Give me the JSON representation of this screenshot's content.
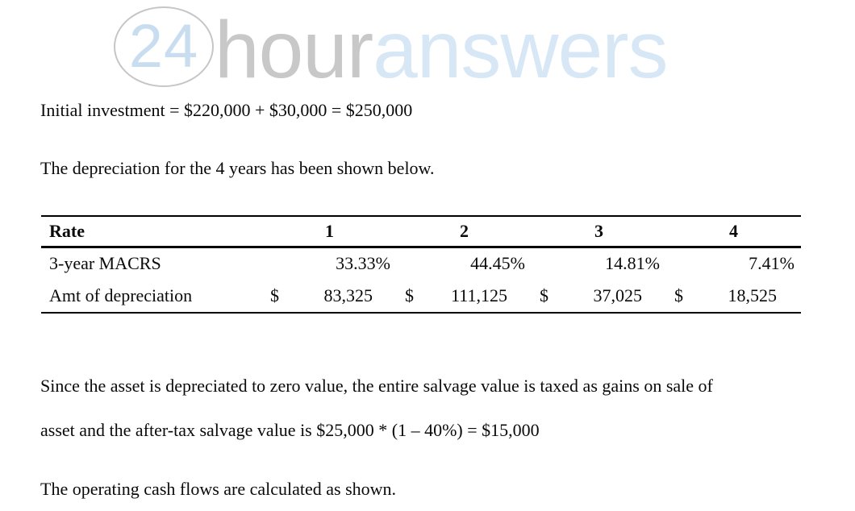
{
  "logo": {
    "badge": "24",
    "part1": "hour",
    "part2": "answers"
  },
  "colors": {
    "logo_badge_blue": "#c9ddf1",
    "logo_hour_gray": "#c8c8c8",
    "logo_answers_blue": "#d7e7f6",
    "circle_border_gray": "#c6c6c6",
    "body_text": "#0a0a0a"
  },
  "paragraphs": {
    "initial_investment": "Initial investment = $220,000 + $30,000 = $250,000",
    "depreciation_intro": "The depreciation for the 4 years has been shown below.",
    "salvage_line1": "Since the asset is depreciated to zero value, the entire salvage value is taxed as gains on sale of",
    "salvage_line2": "asset and the after-tax salvage value is $25,000 * (1 – 40%) = $15,000",
    "operating_cash_flows": "The operating cash flows are calculated as shown."
  },
  "table": {
    "header": {
      "label": "Rate",
      "years": [
        "1",
        "2",
        "3",
        "4"
      ]
    },
    "rows": {
      "macrs": {
        "label": "3-year MACRS",
        "values": [
          "33.33%",
          "44.45%",
          "14.81%",
          "7.41%"
        ]
      },
      "amount": {
        "label": "Amt of depreciation",
        "currency": "$",
        "values": [
          "83,325",
          "111,125",
          "37,025",
          "18,525"
        ]
      }
    }
  }
}
